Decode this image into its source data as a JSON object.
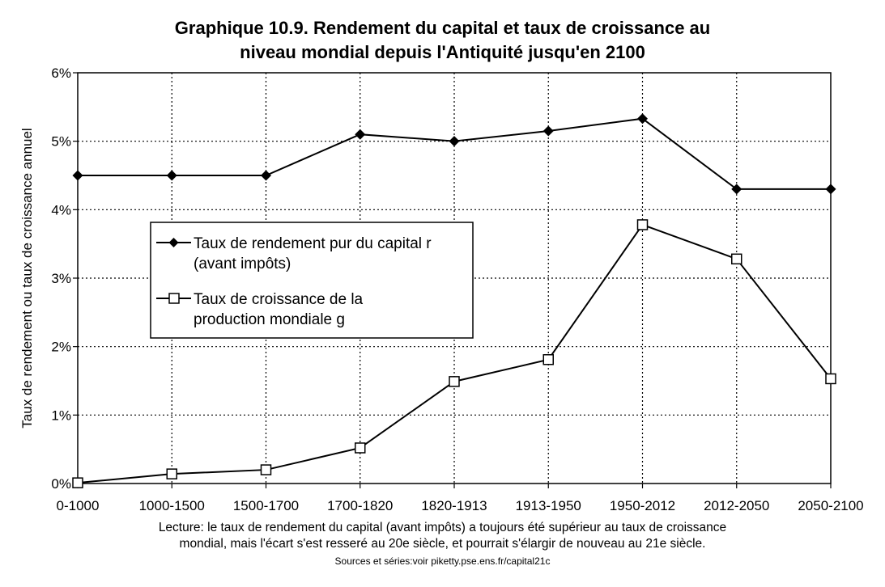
{
  "title_line1": "Graphique 10.9. Rendement du capital et taux de croissance au",
  "title_line2": "niveau mondial depuis l'Antiquité jusqu'en 2100",
  "note_line1": "Lecture: le taux de rendement du capital (avant impôts) a toujours été supérieur au taux de croissance",
  "note_line2": "mondial, mais l'écart s'est resseré au 20e siècle, et pourrait s'élargir de nouveau au 21e siècle.",
  "source": "Sources et séries:voir piketty.pse.ens.fr/capital21c",
  "chart_data": {
    "type": "line",
    "title": "Graphique 10.9. Rendement du capital et taux de croissance au niveau mondial depuis l'Antiquité jusqu'en 2100",
    "xlabel": "",
    "ylabel": "Taux de rendement ou taux de croissance annuel",
    "ylim": [
      0,
      6
    ],
    "yticks": [
      "0%",
      "1%",
      "2%",
      "3%",
      "4%",
      "5%",
      "6%"
    ],
    "grid": true,
    "legend_position": "center-left",
    "categories": [
      "0-1000",
      "1000-1500",
      "1500-1700",
      "1700-1820",
      "1820-1913",
      "1913-1950",
      "1950-2012",
      "2012-2050",
      "2050-2100"
    ],
    "series": [
      {
        "name": "Taux de rendement pur du capital r (avant impôts)",
        "legend_lines": [
          "Taux de rendement pur du capital r",
          "(avant impôts)"
        ],
        "marker": "filled-diamond",
        "values": [
          4.5,
          4.5,
          4.5,
          5.1,
          5.0,
          5.15,
          5.33,
          4.3,
          4.3
        ]
      },
      {
        "name": "Taux de croissance de la production mondiale g",
        "legend_lines": [
          "Taux de croissance de la",
          "production mondiale g"
        ],
        "marker": "open-square",
        "values": [
          0.01,
          0.14,
          0.2,
          0.52,
          1.49,
          1.81,
          3.78,
          3.28,
          1.53
        ]
      }
    ]
  }
}
